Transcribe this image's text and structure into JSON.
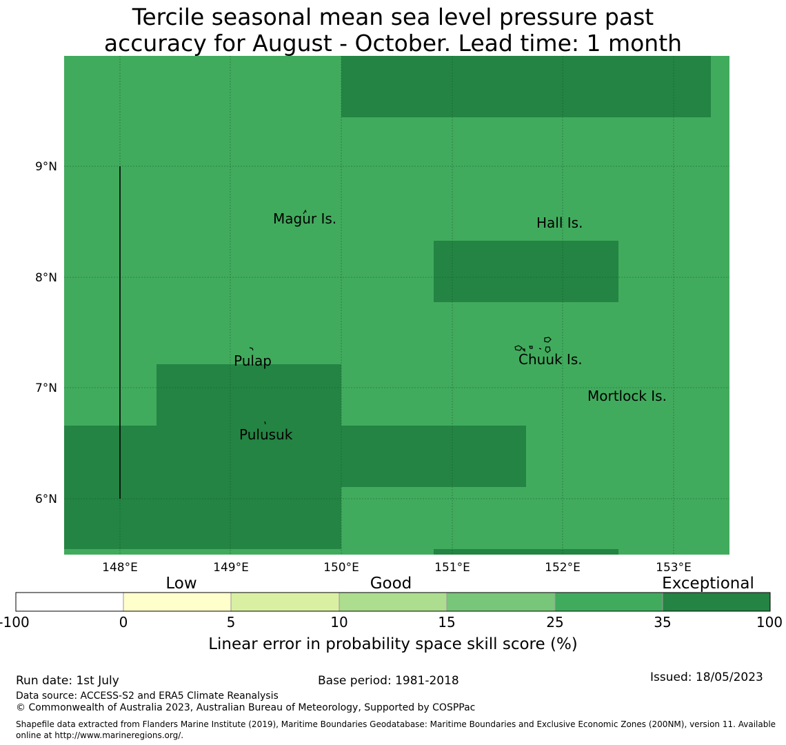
{
  "title": {
    "line1": "Tercile seasonal mean sea level pressure past",
    "line2": "accuracy for August - October. Lead time: 1 month"
  },
  "map": {
    "lon_labels": [
      "148°E",
      "149°E",
      "150°E",
      "151°E",
      "152°E",
      "153°E"
    ],
    "lat_labels": [
      "9°N",
      "8°N",
      "7°N",
      "6°N"
    ],
    "places": [
      "Magur Is.",
      "Hall Is.",
      "Pulap",
      "Chuuk Is.",
      "Mortlock Is.",
      "Pulusuk"
    ],
    "colors": {
      "good": "#41ab5d",
      "exceptional": "#238443"
    }
  },
  "legend": {
    "categories": [
      "Low",
      "Good",
      "Exceptional"
    ],
    "ticks": [
      "-100",
      "0",
      "5",
      "10",
      "15",
      "25",
      "35",
      "100"
    ],
    "colors": [
      "#ffffff",
      "#ffffcc",
      "#d9f0a3",
      "#addd8e",
      "#78c679",
      "#41ab5d",
      "#238443"
    ],
    "label": "Linear error in probability space skill score (%)"
  },
  "footer": {
    "run_date": "Run date: 1st July",
    "base_period": "Base period: 1981-2018",
    "issued": "Issued: 18/05/2023",
    "data_source": "Data source: ACCESS-S2 and ERA5 Climate Reanalysis",
    "copyright": "© Commonwealth of Australia 2023, Australian Bureau of Meteorology, Supported by COSPPac",
    "shapefile": "Shapefile data extracted from Flanders Marine Institute (2019), Maritime Boundaries Geodatabase: Maritime Boundaries and Exclusive Economic Zones (200NM), version 11. Available online at http://www.marineregions.org/."
  }
}
